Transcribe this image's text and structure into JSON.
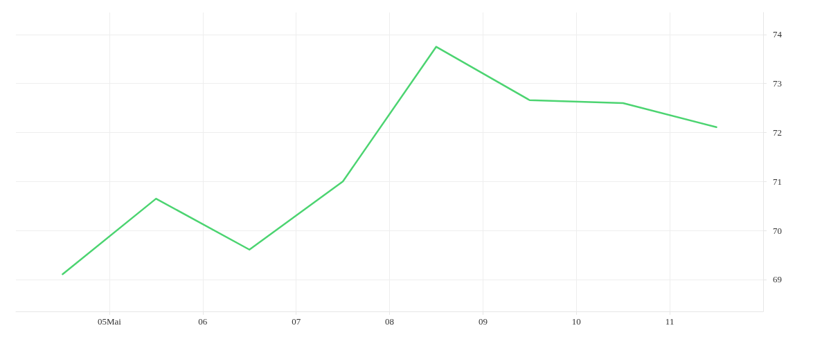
{
  "chart_data": {
    "type": "line",
    "x": [
      "--05-04T12:00",
      "--05-05T12:00",
      "--05-06T12:00",
      "--05-07T12:00",
      "--05-08T12:00",
      "--05-09T12:00",
      "--05-10T12:00",
      "--05-11T12:00"
    ],
    "series": [
      {
        "color": "#4cd471",
        "values": [
          69.11,
          70.65,
          69.61,
          71.0,
          73.75,
          72.66,
          72.6,
          72.11
        ]
      }
    ],
    "xlim": [
      "--05-04",
      "--05-12"
    ],
    "xticks": [
      {
        "value": "--05-05",
        "label": "05Mai"
      },
      {
        "value": "--05-06",
        "label": "06"
      },
      {
        "value": "--05-07",
        "label": "07"
      },
      {
        "value": "--05-08",
        "label": "08"
      },
      {
        "value": "--05-09",
        "label": "09"
      },
      {
        "value": "--05-10",
        "label": "10"
      },
      {
        "value": "--05-11",
        "label": "11"
      }
    ],
    "ylim": [
      68.35,
      74.45
    ],
    "yticks": [
      69,
      70,
      71,
      72,
      73,
      74
    ],
    "grid": true,
    "marker": "none",
    "line_style": "solid"
  }
}
